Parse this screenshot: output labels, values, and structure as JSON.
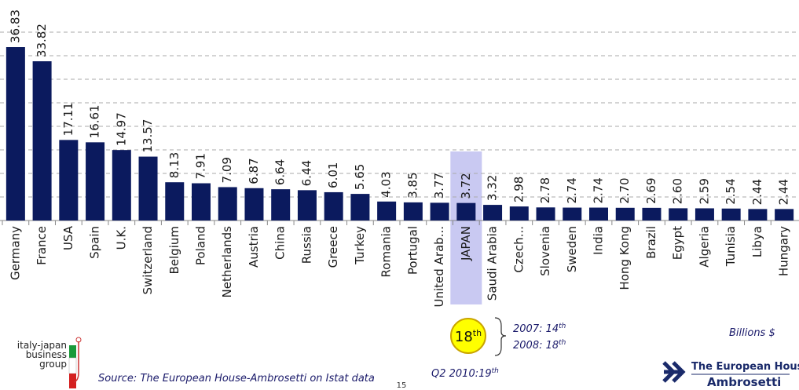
{
  "chart_data": {
    "type": "bar",
    "categories": [
      "Germany",
      "France",
      "USA",
      "Spain",
      "U.K.",
      "Switzerland",
      "Belgium",
      "Poland",
      "Netherlands",
      "Austria",
      "China",
      "Russia",
      "Greece",
      "Turkey",
      "Romania",
      "Portugal",
      "United Arab...",
      "JAPAN",
      "Saudi Arabia",
      "Czech...",
      "Slovenia",
      "Sweden",
      "India",
      "Hong Kong",
      "Brazil",
      "Egypt",
      "Algeria",
      "Tunisia",
      "Libya",
      "Hungary"
    ],
    "values": [
      36.83,
      33.82,
      17.11,
      16.61,
      14.97,
      13.57,
      8.13,
      7.91,
      7.09,
      6.87,
      6.64,
      6.44,
      6.01,
      5.65,
      4.03,
      3.85,
      3.77,
      3.72,
      3.32,
      2.98,
      2.78,
      2.74,
      2.74,
      2.7,
      2.69,
      2.6,
      2.59,
      2.54,
      2.44,
      2.44
    ],
    "value_labels": [
      "36.83",
      "33.82",
      "17.11",
      "16.61",
      "14.97",
      "13.57",
      "8.13",
      "7.91",
      "7.09",
      "6.87",
      "6.64",
      "6.44",
      "6.01",
      "5.65",
      "4.03",
      "3.85",
      "3.77",
      "3.72",
      "3.32",
      "2.98",
      "2.78",
      "2.74",
      "2.74",
      "2.70",
      "2.69",
      "2.60",
      "2.59",
      "2.54",
      "2.44",
      "2.44"
    ],
    "color": "#0b1a5e",
    "highlight": "JAPAN",
    "highlight_color": "#c9c9f2",
    "ylim": [
      0,
      40
    ],
    "yticks": [
      0,
      5,
      10,
      15,
      20,
      25,
      30,
      35,
      40
    ],
    "grid": true,
    "rank": {
      "number": "18",
      "suffix": "th"
    },
    "history": [
      {
        "text": "2007: 14",
        "sup": "th"
      },
      {
        "text": "2008: 18",
        "sup": "th"
      }
    ],
    "quarter": {
      "text": "Q2 2010:19",
      "sup": "th"
    },
    "unit_note": "Billions $",
    "source": "Source: The European House-Ambrosetti on Istat data",
    "page_number": "15"
  },
  "logos": {
    "left": [
      "italy-japan",
      "business",
      "group"
    ],
    "right": [
      "The European House",
      "Ambrosetti"
    ]
  }
}
